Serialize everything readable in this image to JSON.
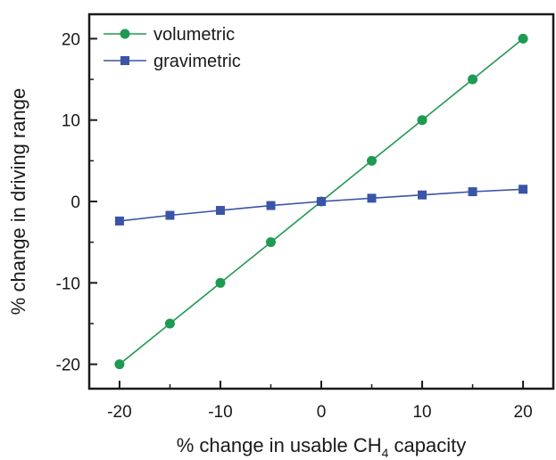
{
  "chart_data": {
    "type": "line",
    "xlabel_main": "% change in usable CH",
    "xlabel_sub": "4",
    "xlabel_tail": " capacity",
    "ylabel": "% change in driving range",
    "xlim": [
      -23,
      23
    ],
    "ylim": [
      -23,
      23
    ],
    "xticks": [
      -20,
      -10,
      0,
      10,
      20
    ],
    "yticks": [
      -20,
      -10,
      0,
      10,
      20
    ],
    "x": [
      -20,
      -15,
      -10,
      -5,
      0,
      5,
      10,
      15,
      20
    ],
    "series": [
      {
        "name": "volumetric",
        "marker": "circle",
        "color": "#1e9a52",
        "values": [
          -20,
          -15,
          -10,
          -5,
          0,
          5,
          10,
          15,
          20
        ]
      },
      {
        "name": "gravimetric",
        "marker": "square",
        "color": "#3a54a8",
        "values": [
          -2.4,
          -1.7,
          -1.1,
          -0.5,
          0,
          0.4,
          0.8,
          1.2,
          1.5
        ]
      }
    ],
    "legend_position": "top-left",
    "grid": false
  }
}
